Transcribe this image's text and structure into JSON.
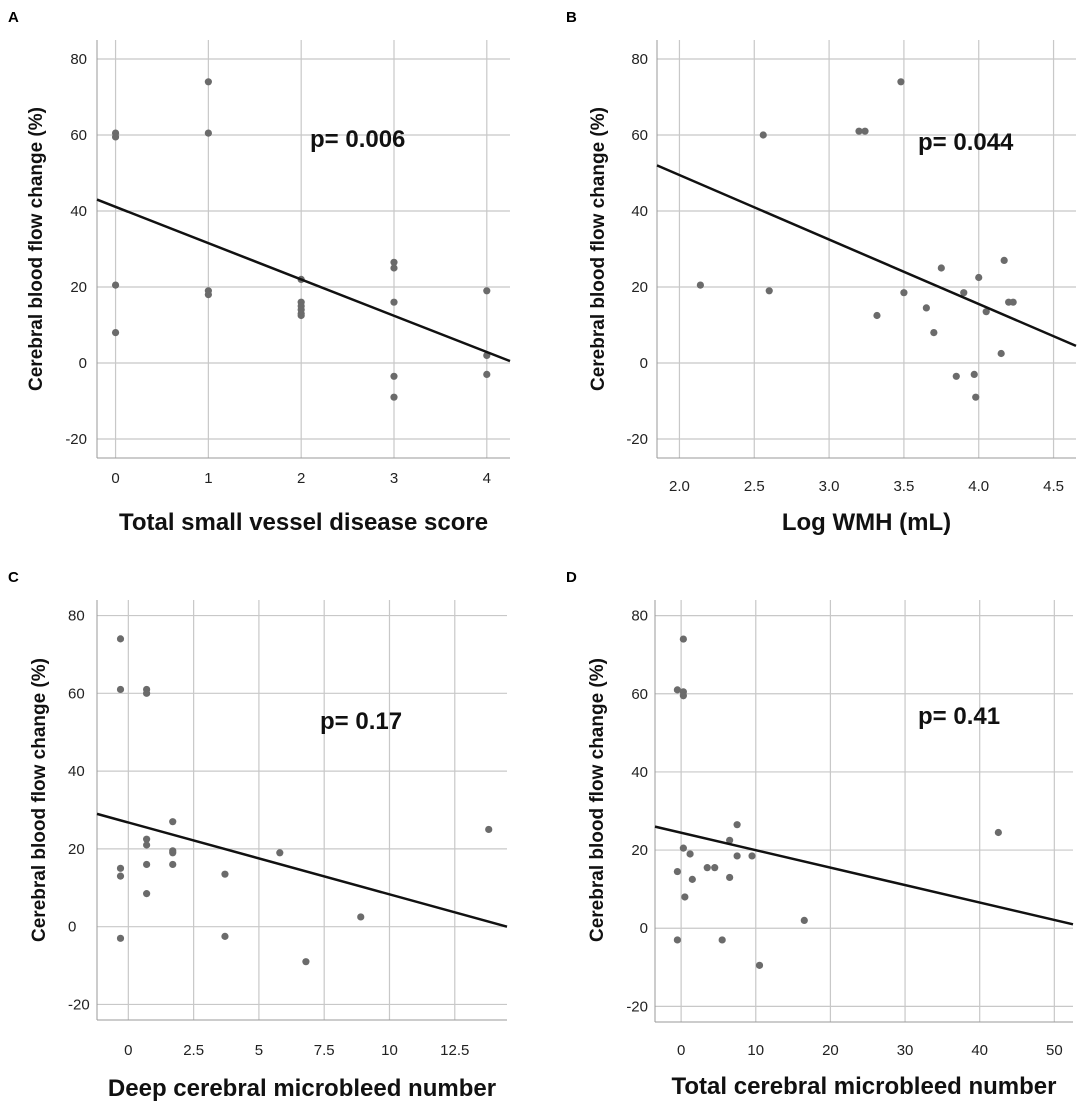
{
  "chart_data": [
    {
      "id": "A",
      "type": "scatter",
      "panel_label": "A",
      "xlabel": "Total small vessel disease score",
      "ylabel": "Cerebral blood flow change (%)",
      "annotation": "p= 0.006",
      "xlim": [
        -0.2,
        4.25
      ],
      "ylim": [
        -25,
        85
      ],
      "xticks": [
        0,
        1,
        2,
        3,
        4
      ],
      "xtick_labels": [
        "0",
        "1",
        "2",
        "3",
        "4"
      ],
      "yticks": [
        -20,
        0,
        20,
        40,
        60,
        80
      ],
      "ytick_labels": [
        "-20",
        "0",
        "20",
        "40",
        "60",
        "80"
      ],
      "points": [
        [
          0,
          60.5
        ],
        [
          0,
          59.5
        ],
        [
          0,
          20.5
        ],
        [
          0,
          8
        ],
        [
          1,
          74
        ],
        [
          1,
          60.5
        ],
        [
          1,
          19
        ],
        [
          1,
          18
        ],
        [
          2,
          22
        ],
        [
          2,
          16
        ],
        [
          2,
          15
        ],
        [
          2,
          14
        ],
        [
          2,
          13
        ],
        [
          2,
          12.5
        ],
        [
          3,
          26.5
        ],
        [
          3,
          25
        ],
        [
          3,
          16
        ],
        [
          3,
          -3.5
        ],
        [
          3,
          -9
        ],
        [
          4,
          19
        ],
        [
          4,
          2
        ],
        [
          4,
          -3
        ]
      ],
      "fit_line": [
        [
          -0.2,
          43
        ],
        [
          4.25,
          0.5
        ]
      ]
    },
    {
      "id": "B",
      "type": "scatter",
      "panel_label": "B",
      "xlabel": "Log WMH (mL)",
      "ylabel": "Cerebral blood flow change (%)",
      "annotation": "p= 0.044",
      "xlim": [
        1.85,
        4.65
      ],
      "ylim": [
        -25,
        85
      ],
      "xticks": [
        2.0,
        2.5,
        3.0,
        3.5,
        4.0,
        4.5
      ],
      "xtick_labels": [
        "2.0",
        "2.5",
        "3.0",
        "3.5",
        "4.0",
        "4.5"
      ],
      "yticks": [
        -20,
        0,
        20,
        40,
        60,
        80
      ],
      "ytick_labels": [
        "-20",
        "0",
        "20",
        "40",
        "60",
        "80"
      ],
      "points": [
        [
          2.14,
          20.5
        ],
        [
          2.56,
          60
        ],
        [
          2.6,
          19
        ],
        [
          3.2,
          61
        ],
        [
          3.24,
          61
        ],
        [
          3.32,
          12.5
        ],
        [
          3.48,
          74
        ],
        [
          3.5,
          18.5
        ],
        [
          3.65,
          14.5
        ],
        [
          3.7,
          8
        ],
        [
          3.75,
          25
        ],
        [
          3.85,
          -3.5
        ],
        [
          3.9,
          18.5
        ],
        [
          3.97,
          -3
        ],
        [
          3.98,
          -9
        ],
        [
          4.0,
          22.5
        ],
        [
          4.05,
          13.5
        ],
        [
          4.15,
          2.5
        ],
        [
          4.17,
          27
        ],
        [
          4.2,
          16
        ],
        [
          4.23,
          16
        ]
      ],
      "fit_line": [
        [
          1.85,
          52
        ],
        [
          4.65,
          4.5
        ]
      ]
    },
    {
      "id": "C",
      "type": "scatter",
      "panel_label": "C",
      "xlabel": "Deep cerebral microbleed number",
      "ylabel": "Cerebral blood flow change (%)",
      "annotation": "p= 0.17",
      "xlim": [
        -1.2,
        14.5
      ],
      "ylim": [
        -24,
        84
      ],
      "xticks": [
        0,
        2.5,
        5,
        7.5,
        10,
        12.5
      ],
      "xtick_labels": [
        "0",
        "2.5",
        "5",
        "7.5",
        "10",
        "12.5"
      ],
      "yticks": [
        -20,
        0,
        20,
        40,
        60,
        80
      ],
      "ytick_labels": [
        "-20",
        "0",
        "20",
        "40",
        "60",
        "80"
      ],
      "points": [
        [
          -0.3,
          74
        ],
        [
          -0.3,
          61
        ],
        [
          -0.3,
          15
        ],
        [
          -0.3,
          13
        ],
        [
          -0.3,
          -3
        ],
        [
          0.7,
          61
        ],
        [
          0.7,
          60
        ],
        [
          0.7,
          22.5
        ],
        [
          0.7,
          21
        ],
        [
          0.7,
          16
        ],
        [
          0.7,
          8.5
        ],
        [
          1.7,
          27
        ],
        [
          1.7,
          19.5
        ],
        [
          1.7,
          19
        ],
        [
          1.7,
          16
        ],
        [
          3.7,
          13.5
        ],
        [
          3.7,
          -2.5
        ],
        [
          5.8,
          19
        ],
        [
          6.8,
          -9
        ],
        [
          8.9,
          2.5
        ],
        [
          13.8,
          25
        ]
      ],
      "fit_line": [
        [
          -1.2,
          29
        ],
        [
          14.5,
          0
        ]
      ]
    },
    {
      "id": "D",
      "type": "scatter",
      "panel_label": "D",
      "xlabel": "Total cerebral microbleed number",
      "ylabel": "Cerebral blood flow change (%)",
      "annotation": "p= 0.41",
      "xlim": [
        -3.5,
        52.5
      ],
      "ylim": [
        -24,
        84
      ],
      "xticks": [
        0,
        10,
        20,
        30,
        40,
        50
      ],
      "xtick_labels": [
        "0",
        "10",
        "20",
        "30",
        "40",
        "50"
      ],
      "yticks": [
        -20,
        0,
        20,
        40,
        60,
        80
      ],
      "ytick_labels": [
        "-20",
        "0",
        "20",
        "40",
        "60",
        "80"
      ],
      "points": [
        [
          -0.5,
          61
        ],
        [
          -0.5,
          14.5
        ],
        [
          -0.5,
          -3
        ],
        [
          0.3,
          74
        ],
        [
          0.3,
          60.5
        ],
        [
          0.3,
          59.5
        ],
        [
          0.3,
          20.5
        ],
        [
          0.5,
          8
        ],
        [
          1.2,
          19
        ],
        [
          1.5,
          12.5
        ],
        [
          3.5,
          15.5
        ],
        [
          4.5,
          15.5
        ],
        [
          5.5,
          -3
        ],
        [
          6.5,
          22.5
        ],
        [
          6.5,
          13
        ],
        [
          7.5,
          26.5
        ],
        [
          7.5,
          18.5
        ],
        [
          9.5,
          18.5
        ],
        [
          10.5,
          -9.5
        ],
        [
          16.5,
          2
        ],
        [
          42.5,
          24.5
        ]
      ],
      "fit_line": [
        [
          -3.5,
          26
        ],
        [
          52.5,
          1
        ]
      ]
    }
  ]
}
